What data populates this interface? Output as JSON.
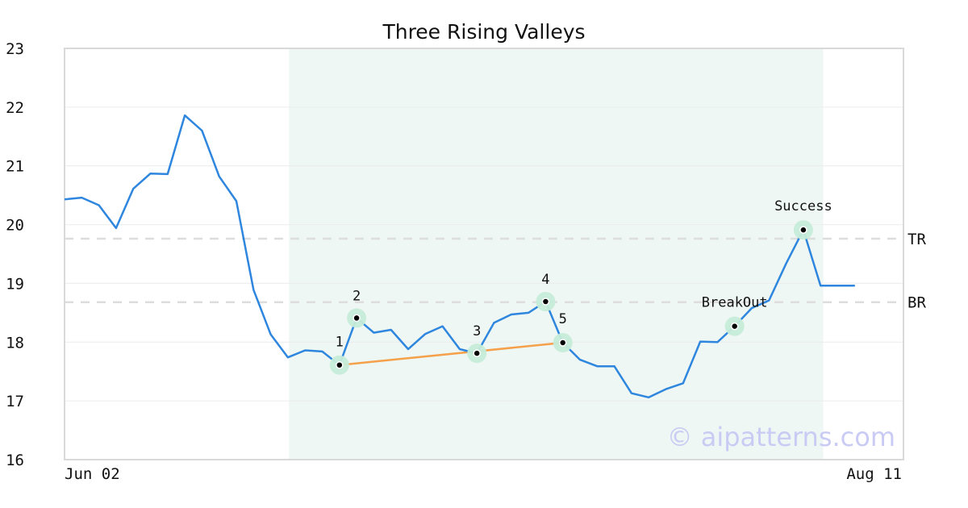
{
  "chart_data": {
    "type": "line",
    "title": "Three Rising Valleys",
    "xlabel": "",
    "ylabel": "",
    "ylim": [
      16,
      23
    ],
    "y_ticks": [
      "16",
      "17",
      "18",
      "19",
      "20",
      "21",
      "22",
      "23"
    ],
    "x_tick_labels": {
      "start": "Jun 02",
      "end": "Aug 11"
    },
    "grid": true,
    "line_color": "#2e86de",
    "series": [
      {
        "values": [
          20.43,
          20.46,
          20.33,
          19.94,
          20.61,
          20.87,
          20.86,
          21.86,
          21.6,
          20.82,
          20.4,
          18.89,
          18.13,
          17.74,
          17.86,
          17.84,
          17.61,
          18.41,
          18.16,
          18.21,
          17.88,
          18.14,
          18.27,
          17.88,
          17.81,
          18.33,
          18.47,
          18.5,
          18.69,
          17.99,
          17.7,
          17.59,
          17.59,
          17.13,
          17.06,
          17.2,
          17.3,
          18.01,
          18.0,
          18.27,
          18.58,
          18.71,
          19.34,
          19.91,
          18.96,
          18.96,
          18.96
        ]
      }
    ],
    "shaded_region": {
      "from_index": 14,
      "to_index": 45,
      "color": "#eef7f3"
    },
    "reference_lines": [
      {
        "label": "TR",
        "value": 19.76
      },
      {
        "label": "BR",
        "value": 18.68
      }
    ],
    "pattern_line": {
      "from_index": 16,
      "to_index": 29,
      "color": "#f5a04a"
    },
    "markers": [
      {
        "label": "1",
        "index": 16,
        "value": 17.61
      },
      {
        "label": "2",
        "index": 17,
        "value": 18.41
      },
      {
        "label": "3",
        "index": 24,
        "value": 17.81
      },
      {
        "label": "4",
        "index": 28,
        "value": 18.69
      },
      {
        "label": "5",
        "index": 29,
        "value": 17.99
      },
      {
        "label": "BreakOut",
        "index": 39,
        "value": 18.27
      },
      {
        "label": "Success",
        "index": 43,
        "value": 19.91
      }
    ],
    "watermark": "© aipatterns.com"
  }
}
